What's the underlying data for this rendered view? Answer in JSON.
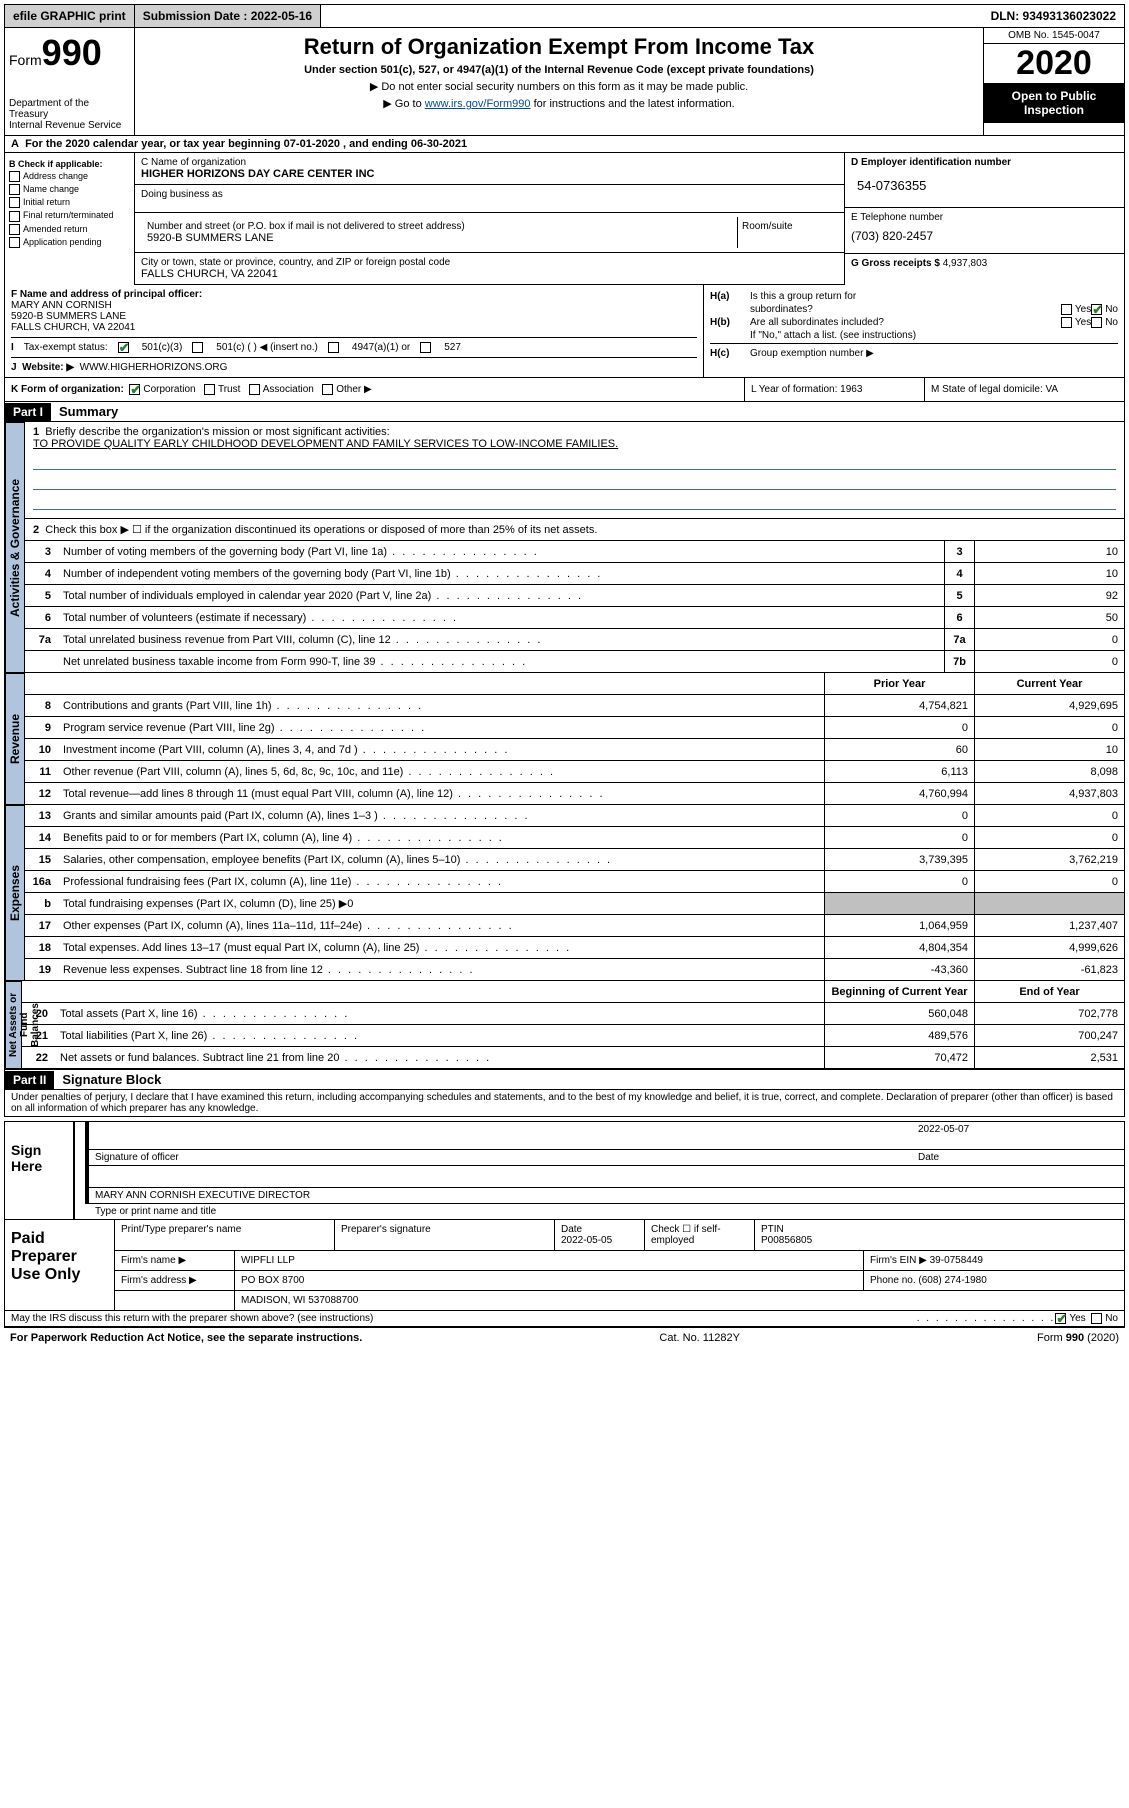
{
  "topbar": {
    "efile": "efile GRAPHIC print",
    "submission_label": "Submission Date : 2022-05-16",
    "dln": "DLN: 93493136023022"
  },
  "header": {
    "form_word": "Form",
    "form_num": "990",
    "dept": "Department of the Treasury",
    "irs": "Internal Revenue Service",
    "title": "Return of Organization Exempt From Income Tax",
    "sub": "Under section 501(c), 527, or 4947(a)(1) of the Internal Revenue Code (except private foundations)",
    "note1": "▶ Do not enter social security numbers on this form as it may be made public.",
    "note2_pre": "▶ Go to ",
    "note2_link": "www.irs.gov/Form990",
    "note2_post": " for instructions and the latest information.",
    "omb": "OMB No. 1545-0047",
    "year": "2020",
    "open": "Open to Public Inspection"
  },
  "rowA": "For the 2020 calendar year, or tax year beginning 07-01-2020    , and ending 06-30-2021",
  "B": {
    "title": "B Check if applicable:",
    "items": [
      "Address change",
      "Name change",
      "Initial return",
      "Final return/terminated",
      "Amended return",
      "Application pending"
    ]
  },
  "C": {
    "name_label": "C Name of organization",
    "name": "HIGHER HORIZONS DAY CARE CENTER INC",
    "dba_label": "Doing business as",
    "street_label": "Number and street (or P.O. box if mail is not delivered to street address)",
    "room_label": "Room/suite",
    "street": "5920-B SUMMERS LANE",
    "city_label": "City or town, state or province, country, and ZIP or foreign postal code",
    "city": "FALLS CHURCH, VA  22041"
  },
  "D": {
    "ein_label": "D Employer identification number",
    "ein": "54-0736355",
    "phone_label": "E Telephone number",
    "phone": "(703) 820-2457",
    "gross_label": "G Gross receipts $ ",
    "gross": "4,937,803"
  },
  "F": {
    "label": "F  Name and address of principal officer:",
    "name": "MARY ANN CORNISH",
    "addr1": "5920-B SUMMERS LANE",
    "addr2": "FALLS CHURCH, VA  22041"
  },
  "H": {
    "a_label": "Is this a group return for",
    "a_label2": "subordinates?",
    "b_label": "Are all subordinates included?",
    "b_note": "If \"No,\" attach a list. (see instructions)",
    "c_label": "Group exemption number ▶"
  },
  "I": {
    "label": "Tax-exempt status:",
    "opt1": "501(c)(3)",
    "opt2": "501(c) (   ) ◀ (insert no.)",
    "opt3": "4947(a)(1) or",
    "opt4": "527"
  },
  "J": {
    "label": "Website: ▶",
    "val": "WWW.HIGHERHORIZONS.ORG"
  },
  "K": {
    "label": "K Form of organization:",
    "opts": [
      "Corporation",
      "Trust",
      "Association",
      "Other ▶"
    ],
    "L": "L Year of formation: 1963",
    "M": "M State of legal domicile: VA"
  },
  "parts": {
    "p1": "Part I",
    "p1_title": "Summary",
    "p2": "Part II",
    "p2_title": "Signature Block"
  },
  "tabs": {
    "gov": "Activities & Governance",
    "rev": "Revenue",
    "exp": "Expenses",
    "net": "Net Assets or Fund Balances"
  },
  "summary": {
    "l1_label": "Briefly describe the organization's mission or most significant activities:",
    "l1_val": "TO PROVIDE QUALITY EARLY CHILDHOOD DEVELOPMENT AND FAMILY SERVICES TO LOW-INCOME FAMILIES.",
    "l2": "Check this box ▶ ☐  if the organization discontinued its operations or disposed of more than 25% of its net assets.",
    "rows": [
      {
        "n": "3",
        "d": "Number of voting members of the governing body (Part VI, line 1a)",
        "b": "3",
        "v": "10"
      },
      {
        "n": "4",
        "d": "Number of independent voting members of the governing body (Part VI, line 1b)",
        "b": "4",
        "v": "10"
      },
      {
        "n": "5",
        "d": "Total number of individuals employed in calendar year 2020 (Part V, line 2a)",
        "b": "5",
        "v": "92"
      },
      {
        "n": "6",
        "d": "Total number of volunteers (estimate if necessary)",
        "b": "6",
        "v": "50"
      },
      {
        "n": "7a",
        "d": "Total unrelated business revenue from Part VIII, column (C), line 12",
        "b": "7a",
        "v": "0"
      },
      {
        "n": "",
        "d": "Net unrelated business taxable income from Form 990-T, line 39",
        "b": "7b",
        "v": "0"
      }
    ],
    "hdr_prior": "Prior Year",
    "hdr_curr": "Current Year",
    "rev": [
      {
        "n": "8",
        "d": "Contributions and grants (Part VIII, line 1h)",
        "p": "4,754,821",
        "c": "4,929,695"
      },
      {
        "n": "9",
        "d": "Program service revenue (Part VIII, line 2g)",
        "p": "0",
        "c": "0"
      },
      {
        "n": "10",
        "d": "Investment income (Part VIII, column (A), lines 3, 4, and 7d )",
        "p": "60",
        "c": "10"
      },
      {
        "n": "11",
        "d": "Other revenue (Part VIII, column (A), lines 5, 6d, 8c, 9c, 10c, and 11e)",
        "p": "6,113",
        "c": "8,098"
      },
      {
        "n": "12",
        "d": "Total revenue—add lines 8 through 11 (must equal Part VIII, column (A), line 12)",
        "p": "4,760,994",
        "c": "4,937,803"
      }
    ],
    "exp": [
      {
        "n": "13",
        "d": "Grants and similar amounts paid (Part IX, column (A), lines 1–3 )",
        "p": "0",
        "c": "0"
      },
      {
        "n": "14",
        "d": "Benefits paid to or for members (Part IX, column (A), line 4)",
        "p": "0",
        "c": "0"
      },
      {
        "n": "15",
        "d": "Salaries, other compensation, employee benefits (Part IX, column (A), lines 5–10)",
        "p": "3,739,395",
        "c": "3,762,219"
      },
      {
        "n": "16a",
        "d": "Professional fundraising fees (Part IX, column (A), line 11e)",
        "p": "0",
        "c": "0"
      },
      {
        "n": "b",
        "d": "Total fundraising expenses (Part IX, column (D), line 25) ▶0",
        "p": "",
        "c": "",
        "shaded": true
      },
      {
        "n": "17",
        "d": "Other expenses (Part IX, column (A), lines 11a–11d, 11f–24e)",
        "p": "1,064,959",
        "c": "1,237,407"
      },
      {
        "n": "18",
        "d": "Total expenses. Add lines 13–17 (must equal Part IX, column (A), line 25)",
        "p": "4,804,354",
        "c": "4,999,626"
      },
      {
        "n": "19",
        "d": "Revenue less expenses. Subtract line 18 from line 12",
        "p": "-43,360",
        "c": "-61,823"
      }
    ],
    "hdr_beg": "Beginning of Current Year",
    "hdr_end": "End of Year",
    "net": [
      {
        "n": "20",
        "d": "Total assets (Part X, line 16)",
        "p": "560,048",
        "c": "702,778"
      },
      {
        "n": "21",
        "d": "Total liabilities (Part X, line 26)",
        "p": "489,576",
        "c": "700,247"
      },
      {
        "n": "22",
        "d": "Net assets or fund balances. Subtract line 21 from line 20",
        "p": "70,472",
        "c": "2,531"
      }
    ]
  },
  "penalty": "Under penalties of perjury, I declare that I have examined this return, including accompanying schedules and statements, and to the best of my knowledge and belief, it is true, correct, and complete. Declaration of preparer (other than officer) is based on all information of which preparer has any knowledge.",
  "sign": {
    "here": "Sign Here",
    "sig_label": "Signature of officer",
    "date_label": "Date",
    "date": "2022-05-07",
    "name": "MARY ANN CORNISH  EXECUTIVE DIRECTOR",
    "name_label": "Type or print name and title"
  },
  "prep": {
    "title": "Paid Preparer Use Only",
    "h1": "Print/Type preparer's name",
    "h2": "Preparer's signature",
    "h3": "Date",
    "h3v": "2022-05-05",
    "h4": "Check ☐ if self-employed",
    "h5": "PTIN",
    "h5v": "P00856805",
    "firm_label": "Firm's name    ▶",
    "firm": "WIPFLI LLP",
    "ein_label": "Firm's EIN ▶",
    "ein": "39-0758449",
    "addr_label": "Firm's address ▶",
    "addr1": "PO BOX 8700",
    "addr2": "MADISON, WI  537088700",
    "phone_label": "Phone no.",
    "phone": "(608) 274-1980"
  },
  "discuss": "May the IRS discuss this return with the preparer shown above? (see instructions)",
  "footer": {
    "l": "For Paperwork Reduction Act Notice, see the separate instructions.",
    "m": "Cat. No. 11282Y",
    "r": "Form 990 (2020)"
  }
}
